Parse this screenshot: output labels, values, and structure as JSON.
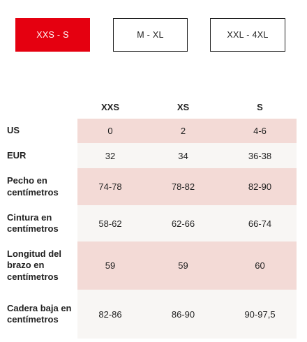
{
  "tabs": [
    {
      "label": "XXS - S",
      "active": true
    },
    {
      "label": "M - XL",
      "active": false
    },
    {
      "label": "XXL - 4XL",
      "active": false
    }
  ],
  "table": {
    "headers": [
      "XXS",
      "XS",
      "S"
    ],
    "rows": [
      {
        "label": "US",
        "values": [
          "0",
          "2",
          "4-6"
        ]
      },
      {
        "label": "EUR",
        "values": [
          "32",
          "34",
          "36-38"
        ]
      },
      {
        "label": "Pecho en centímetros",
        "values": [
          "74-78",
          "78-82",
          "82-90"
        ]
      },
      {
        "label": "Cintura en centímetros",
        "values": [
          "58-62",
          "62-66",
          "66-74"
        ]
      },
      {
        "label": "Longitud del brazo en centímetros",
        "values": [
          "59",
          "59",
          "60"
        ]
      },
      {
        "label": "Cadera baja en centímetros",
        "values": [
          "82-86",
          "86-90",
          "90-97,5"
        ]
      }
    ]
  },
  "colors": {
    "accent": "#e50010",
    "row_alt_pink": "#f3dad6",
    "row_alt_light": "#f8f6f4"
  }
}
